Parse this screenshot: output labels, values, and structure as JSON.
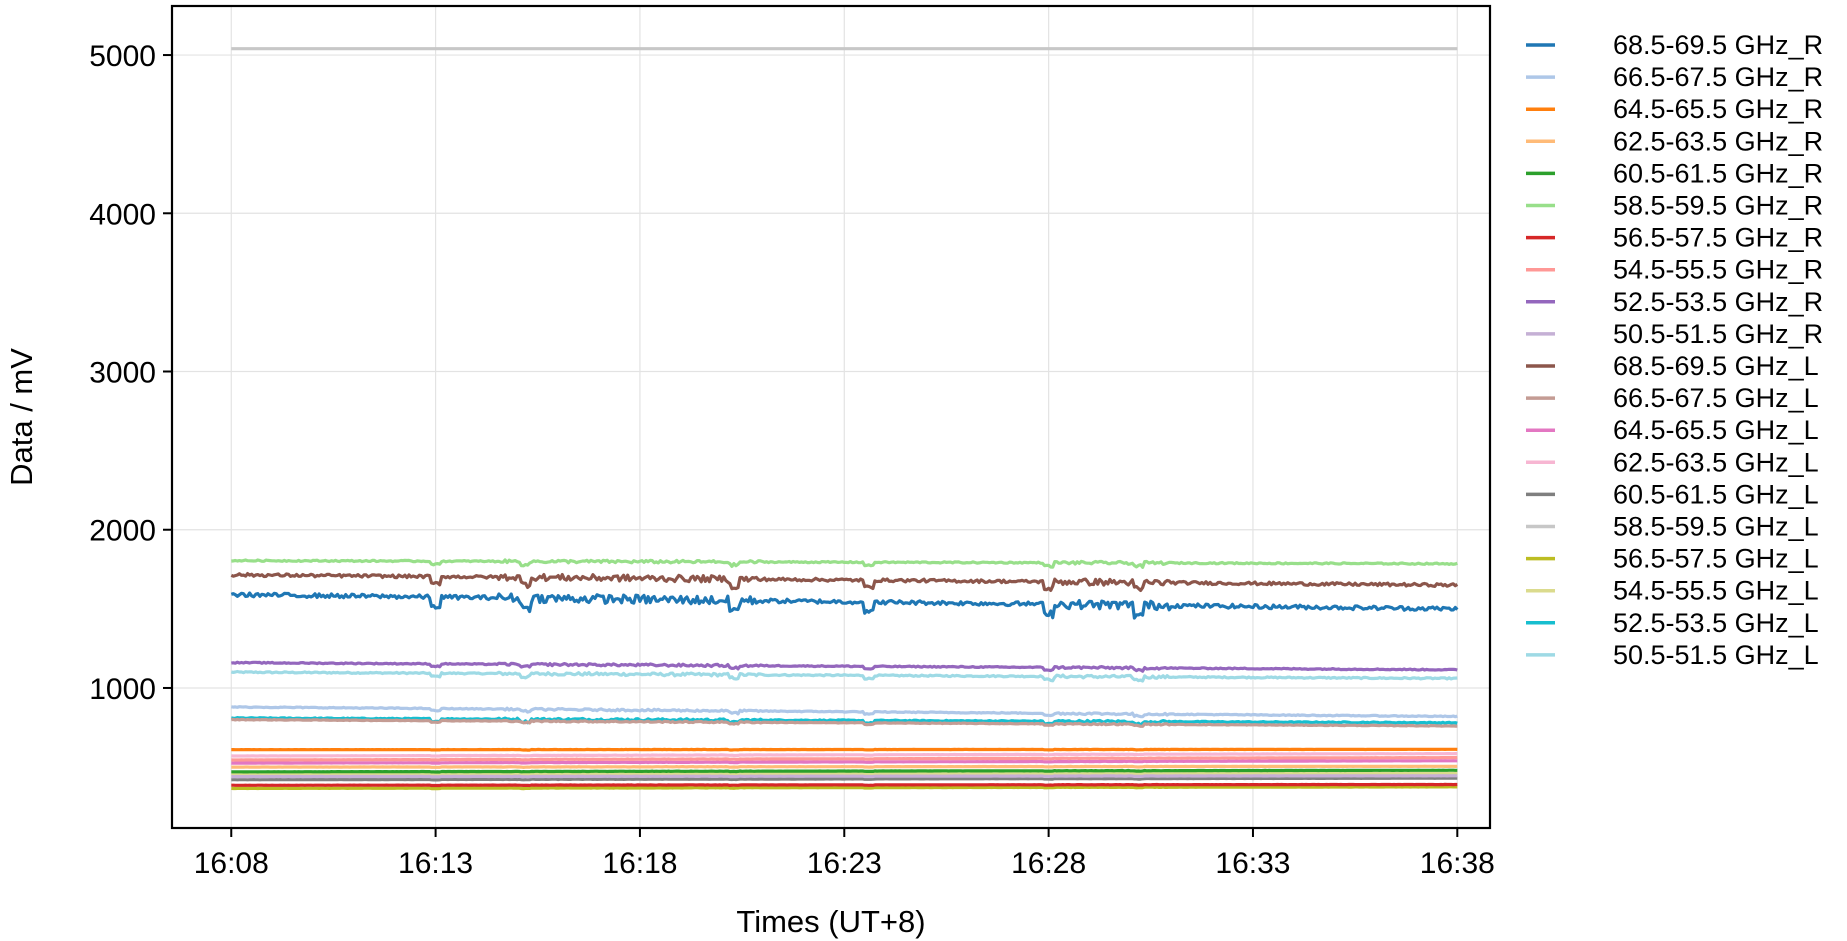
{
  "chart_data": {
    "type": "line",
    "xlabel": "Times (UT+8)",
    "ylabel": "Data / mV",
    "x_ticks": [
      "16:08",
      "16:13",
      "16:18",
      "16:23",
      "16:28",
      "16:33",
      "16:38"
    ],
    "x_tick_minutes": [
      8,
      13,
      18,
      23,
      28,
      33,
      38
    ],
    "xlim": [
      6.55,
      38.8
    ],
    "x_start": "16:08",
    "x_end": "16:38",
    "y_ticks": [
      1000,
      2000,
      3000,
      4000,
      5000
    ],
    "ylim": [
      115,
      5310
    ],
    "grid": true,
    "legend_position": "outside-right",
    "series": [
      {
        "name": "68.5-69.5 GHz_R",
        "color": "#1f77b4",
        "start": 1590,
        "end": 1500,
        "noise": 55
      },
      {
        "name": "66.5-67.5 GHz_R",
        "color": "#aec7e8",
        "start": 880,
        "end": 820,
        "noise": 12
      },
      {
        "name": "64.5-65.5 GHz_R",
        "color": "#ff7f0e",
        "start": 610,
        "end": 612,
        "noise": 2
      },
      {
        "name": "62.5-63.5 GHz_R",
        "color": "#ffbb78",
        "start": 500,
        "end": 505,
        "noise": 2
      },
      {
        "name": "60.5-61.5 GHz_R",
        "color": "#2ca02c",
        "start": 470,
        "end": 480,
        "noise": 2
      },
      {
        "name": "58.5-59.5 GHz_R",
        "color": "#98df8a",
        "start": 1805,
        "end": 1785,
        "noise": 18
      },
      {
        "name": "56.5-57.5 GHz_R",
        "color": "#d62728",
        "start": 385,
        "end": 390,
        "noise": 2
      },
      {
        "name": "54.5-55.5 GHz_R",
        "color": "#ff9896",
        "start": 545,
        "end": 560,
        "noise": 2
      },
      {
        "name": "52.5-53.5 GHz_R",
        "color": "#9467bd",
        "start": 1160,
        "end": 1115,
        "noise": 14
      },
      {
        "name": "50.5-51.5 GHz_R",
        "color": "#c5b0d5",
        "start": 440,
        "end": 445,
        "noise": 2
      },
      {
        "name": "68.5-69.5 GHz_L",
        "color": "#8c564b",
        "start": 1715,
        "end": 1650,
        "noise": 40
      },
      {
        "name": "66.5-67.5 GHz_L",
        "color": "#c49c94",
        "start": 800,
        "end": 760,
        "noise": 8
      },
      {
        "name": "64.5-65.5 GHz_L",
        "color": "#e377c2",
        "start": 525,
        "end": 540,
        "noise": 2
      },
      {
        "name": "62.5-63.5 GHz_L",
        "color": "#f7b6d2",
        "start": 570,
        "end": 585,
        "noise": 2
      },
      {
        "name": "60.5-61.5 GHz_L",
        "color": "#7f7f7f",
        "start": 420,
        "end": 430,
        "noise": 2
      },
      {
        "name": "58.5-59.5 GHz_L",
        "color": "#c7c7c7",
        "start": 5040,
        "end": 5040,
        "noise": 0
      },
      {
        "name": "56.5-57.5 GHz_L",
        "color": "#bcbd22",
        "start": 365,
        "end": 375,
        "noise": 2
      },
      {
        "name": "54.5-55.5 GHz_L",
        "color": "#dbdb8d",
        "start": 455,
        "end": 460,
        "noise": 2
      },
      {
        "name": "52.5-53.5 GHz_L",
        "color": "#17becf",
        "start": 810,
        "end": 780,
        "noise": 14
      },
      {
        "name": "50.5-51.5 GHz_L",
        "color": "#9edae5",
        "start": 1100,
        "end": 1060,
        "noise": 18
      }
    ]
  }
}
